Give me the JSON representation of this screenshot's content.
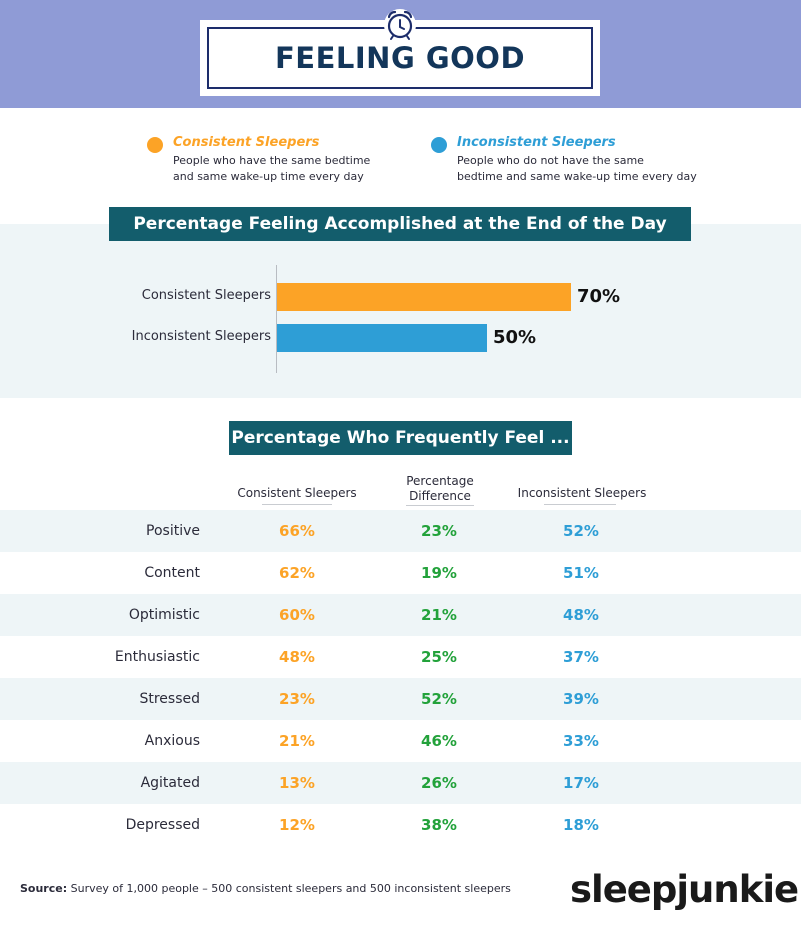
{
  "title": "FEELING GOOD",
  "colors": {
    "header_band": "#8f9bd6",
    "title_navy": "#13365a",
    "consistent": "#fca326",
    "inconsistent": "#2e9ed6",
    "difference": "#23a23b",
    "section_bar": "#135d6c",
    "shade": "#eef5f7"
  },
  "icons": {
    "title": "alarm-clock-icon"
  },
  "legend": [
    {
      "name": "Consistent Sleepers",
      "line1": "People who have the same bedtime",
      "line2": "and same wake-up time every day",
      "color": "#fca326"
    },
    {
      "name": "Inconsistent Sleepers",
      "line1": "People who do not have the same",
      "line2": "bedtime and same wake-up time every day",
      "color": "#2e9ed6"
    }
  ],
  "chart_data": [
    {
      "type": "bar",
      "orientation": "horizontal",
      "title": "Percentage Feeling Accomplished at the End of the Day",
      "categories": [
        "Consistent Sleepers",
        "Inconsistent Sleepers"
      ],
      "values": [
        70,
        50
      ],
      "value_labels": [
        "70%",
        "50%"
      ],
      "colors": [
        "#fca326",
        "#2e9ed6"
      ],
      "xlim": [
        0,
        100
      ],
      "grid": false,
      "legend": "none"
    },
    {
      "type": "table",
      "title": "Percentage Who Frequently Feel ...",
      "columns": [
        "Consistent Sleepers",
        "Percentage Difference",
        "Inconsistent Sleepers"
      ],
      "column_lines": [
        [
          "Consistent Sleepers"
        ],
        [
          "Percentage",
          "Difference"
        ],
        [
          "Inconsistent Sleepers"
        ]
      ],
      "rows": [
        {
          "label": "Positive",
          "consistent": "66%",
          "difference": "23%",
          "inconsistent": "52%"
        },
        {
          "label": "Content",
          "consistent": "62%",
          "difference": "19%",
          "inconsistent": "51%"
        },
        {
          "label": "Optimistic",
          "consistent": "60%",
          "difference": "21%",
          "inconsistent": "48%"
        },
        {
          "label": "Enthusiastic",
          "consistent": "48%",
          "difference": "25%",
          "inconsistent": "37%"
        },
        {
          "label": "Stressed",
          "consistent": "23%",
          "difference": "52%",
          "inconsistent": "39%"
        },
        {
          "label": "Anxious",
          "consistent": "21%",
          "difference": "46%",
          "inconsistent": "33%"
        },
        {
          "label": "Agitated",
          "consistent": "13%",
          "difference": "26%",
          "inconsistent": "17%"
        },
        {
          "label": "Depressed",
          "consistent": "12%",
          "difference": "38%",
          "inconsistent": "18%"
        }
      ]
    }
  ],
  "footer": {
    "source_label": "Source:",
    "source_text": "Survey of 1,000 people – 500 consistent sleepers and 500 inconsistent sleepers",
    "brand": "sleepjunkie"
  }
}
